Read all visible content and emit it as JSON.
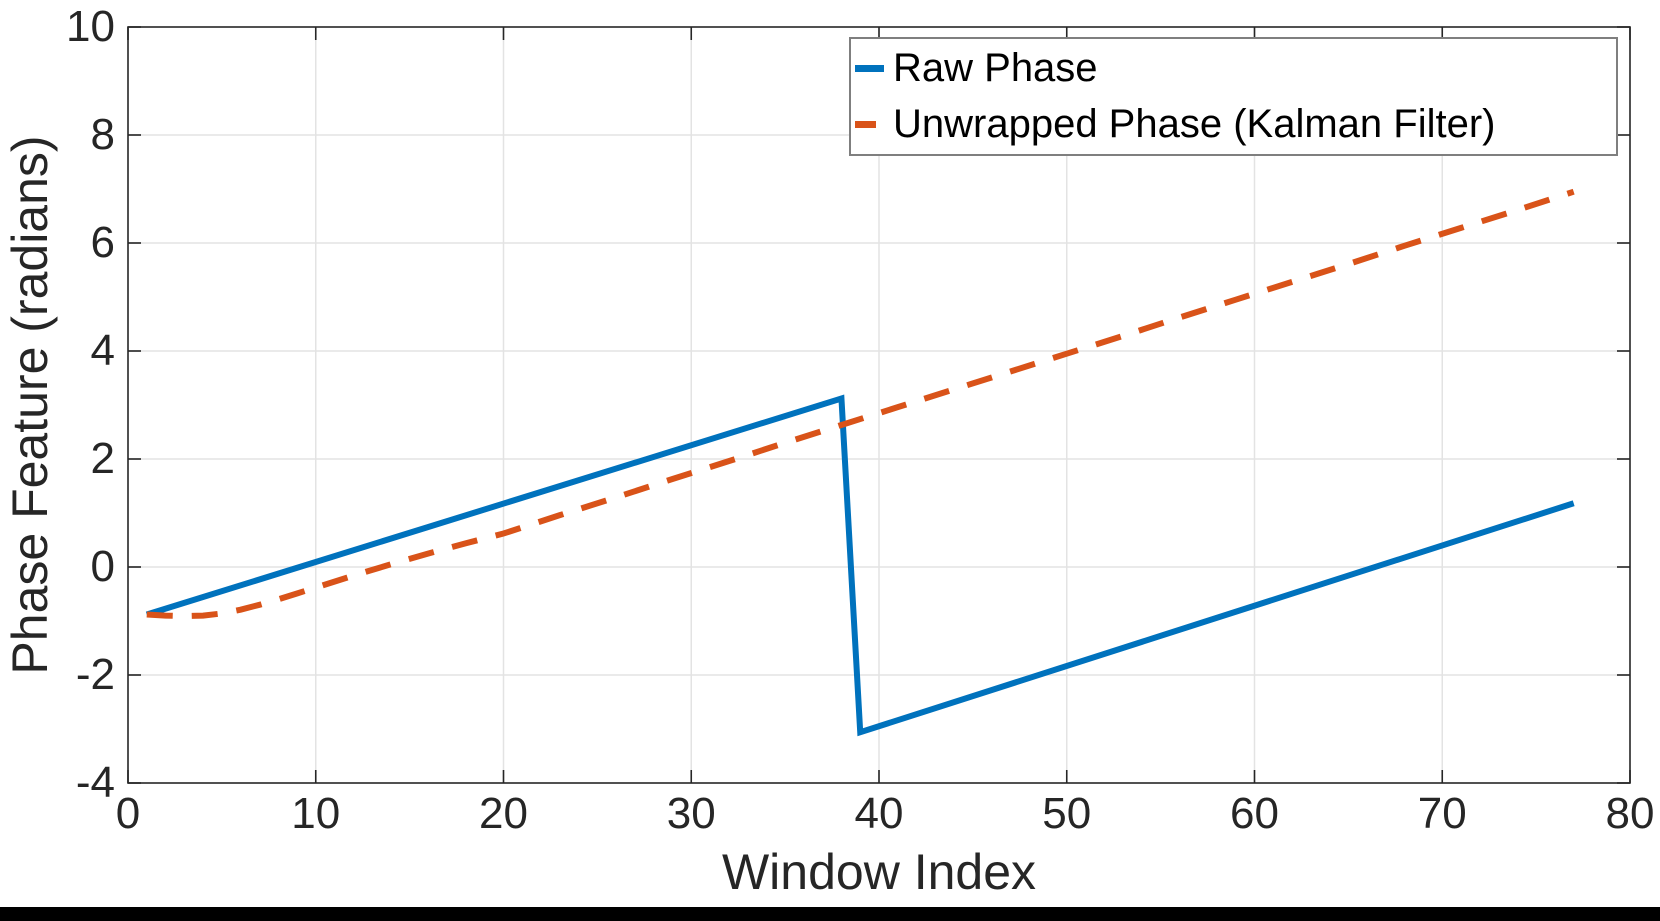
{
  "figure": {
    "background": "#ffffff",
    "bottom_bar_color": "#000000"
  },
  "chart_data": {
    "type": "line",
    "title": "",
    "xlabel": "Window Index",
    "ylabel": "Phase Feature (radians)",
    "xlim": [
      0,
      80
    ],
    "ylim": [
      -4,
      10
    ],
    "x_ticks": [
      0,
      10,
      20,
      30,
      40,
      50,
      60,
      70,
      80
    ],
    "y_ticks": [
      -4,
      -2,
      0,
      2,
      4,
      6,
      8,
      10
    ],
    "grid": true,
    "legend_position": "top-right",
    "axes_color": "#262626",
    "grid_color": "#e3e3e3",
    "tick_label_color": "#262626",
    "series": [
      {
        "name": "Raw Phase",
        "color": "#0072BD",
        "style": "solid",
        "line_width": 6,
        "points": [
          [
            1,
            -0.88
          ],
          [
            38,
            3.12
          ],
          [
            39,
            -3.06
          ],
          [
            77,
            1.18
          ]
        ]
      },
      {
        "name": "Unwrapped Phase (Kalman Filter)",
        "color": "#D95319",
        "style": "dashed",
        "line_width": 6,
        "dash_pattern": [
          26,
          19
        ],
        "points": [
          [
            1,
            -0.88
          ],
          [
            2,
            -0.9
          ],
          [
            3,
            -0.91
          ],
          [
            4,
            -0.9
          ],
          [
            5,
            -0.86
          ],
          [
            6,
            -0.79
          ],
          [
            7,
            -0.7
          ],
          [
            8,
            -0.6
          ],
          [
            9,
            -0.49
          ],
          [
            10,
            -0.38
          ],
          [
            12,
            -0.16
          ],
          [
            14,
            0.05
          ],
          [
            16,
            0.25
          ],
          [
            18,
            0.44
          ],
          [
            20,
            0.62
          ],
          [
            23,
            0.96
          ],
          [
            26,
            1.29
          ],
          [
            29,
            1.63
          ],
          [
            32,
            1.96
          ],
          [
            35,
            2.3
          ],
          [
            38,
            2.63
          ],
          [
            41,
            2.96
          ],
          [
            44,
            3.29
          ],
          [
            47,
            3.62
          ],
          [
            50,
            3.95
          ],
          [
            53,
            4.28
          ],
          [
            56,
            4.62
          ],
          [
            59,
            4.95
          ],
          [
            62,
            5.28
          ],
          [
            65,
            5.61
          ],
          [
            68,
            5.95
          ],
          [
            71,
            6.28
          ],
          [
            74,
            6.61
          ],
          [
            77,
            6.95
          ]
        ]
      }
    ]
  }
}
